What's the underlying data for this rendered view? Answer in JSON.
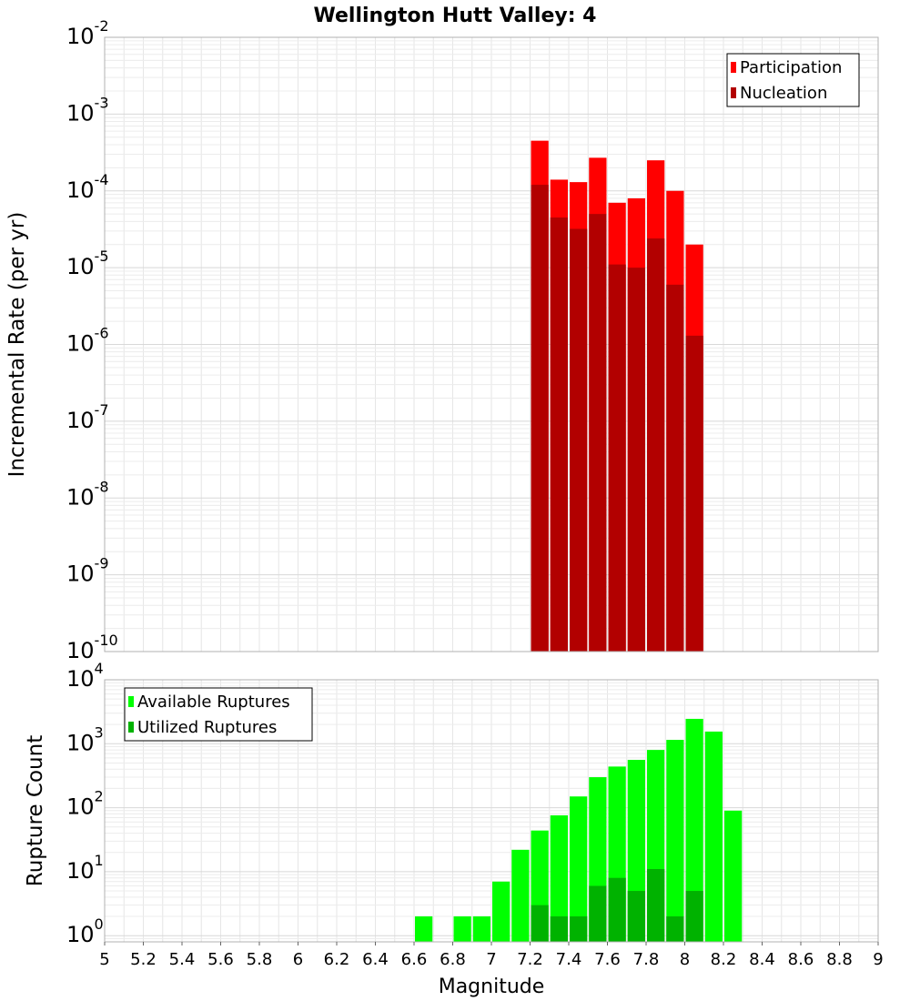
{
  "title": "Wellington Hutt Valley: 4",
  "x_axis": {
    "label": "Magnitude",
    "range": [
      5,
      9
    ],
    "ticks": [
      "5",
      "5.2",
      "5.4",
      "5.6",
      "5.8",
      "6",
      "6.2",
      "6.4",
      "6.6",
      "6.8",
      "7",
      "7.2",
      "7.4",
      "7.6",
      "7.8",
      "8",
      "8.2",
      "8.4",
      "8.6",
      "8.8",
      "9"
    ]
  },
  "colors": {
    "participation": "#ff0000",
    "nucleation": "#b20000",
    "available": "#00ff00",
    "utilized": "#00b200",
    "grid": "#e6e6e6",
    "frame": "#b0b0b0"
  },
  "chart_data": [
    {
      "type": "bar",
      "scale": "log",
      "title": "Wellington Hutt Valley: 4",
      "xlabel": "Magnitude",
      "ylabel": "Incremental Rate (per yr)",
      "xlim": [
        5,
        9
      ],
      "ylim": [
        1e-10,
        0.01
      ],
      "y_tick_exponents": [
        -10,
        -9,
        -8,
        -7,
        -6,
        -5,
        -4,
        -3,
        -2
      ],
      "bar_width": 0.1,
      "grid": true,
      "legend_position": "top-right",
      "x": [
        7.25,
        7.35,
        7.45,
        7.55,
        7.65,
        7.75,
        7.85,
        7.95,
        8.05
      ],
      "series": [
        {
          "name": "Participation",
          "color": "#ff0000",
          "values": [
            0.00045,
            0.00014,
            0.00013,
            0.00027,
            7e-05,
            8e-05,
            0.00025,
            0.0001,
            2e-05
          ]
        },
        {
          "name": "Nucleation",
          "color": "#b20000",
          "values": [
            0.00012,
            4.5e-05,
            3.2e-05,
            5e-05,
            1.1e-05,
            1e-05,
            2.4e-05,
            6e-06,
            1.3e-06
          ]
        }
      ]
    },
    {
      "type": "bar",
      "scale": "log",
      "xlabel": "Magnitude",
      "ylabel": "Rupture Count",
      "xlim": [
        5,
        9
      ],
      "ylim": [
        0.8,
        10000
      ],
      "y_tick_exponents": [
        0,
        1,
        2,
        3,
        4
      ],
      "bar_width": 0.1,
      "grid": true,
      "legend_position": "top-left",
      "x": [
        6.65,
        6.85,
        6.95,
        7.05,
        7.15,
        7.25,
        7.35,
        7.45,
        7.55,
        7.65,
        7.75,
        7.85,
        7.95,
        8.05,
        8.15,
        8.25
      ],
      "series": [
        {
          "name": "Available Ruptures",
          "color": "#00ff00",
          "values": [
            2,
            2,
            2,
            7,
            22,
            44,
            76,
            150,
            300,
            440,
            560,
            800,
            1150,
            2450,
            1550,
            90
          ]
        },
        {
          "name": "Utilized Ruptures",
          "color": "#00b200",
          "values": [
            null,
            null,
            null,
            null,
            null,
            3,
            2,
            2,
            6,
            8,
            5,
            11,
            2,
            5,
            null,
            null
          ]
        }
      ]
    }
  ]
}
